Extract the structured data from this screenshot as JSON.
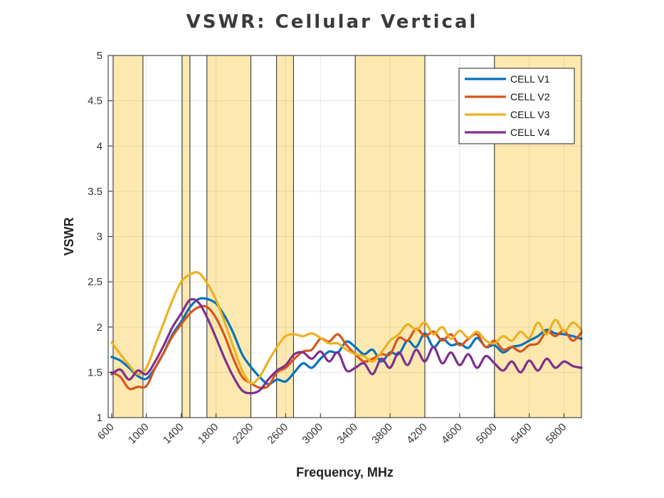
{
  "chart_data": {
    "type": "line",
    "title": "VSWR: Cellular Vertical",
    "xlabel": "Frequency, MHz",
    "ylabel": "VSWR",
    "xlim": [
      560,
      6000
    ],
    "ylim": [
      1,
      5
    ],
    "xticks": [
      600,
      1000,
      1400,
      1800,
      2200,
      2600,
      3000,
      3400,
      3800,
      4200,
      4600,
      5000,
      5400,
      5800
    ],
    "yticks": [
      1,
      1.5,
      2,
      2.5,
      3,
      3.5,
      4,
      4.5,
      5
    ],
    "ytick_labels": [
      "1",
      "1.5",
      "2",
      "2.5",
      "3",
      "3.5",
      "4",
      "4.5",
      "5"
    ],
    "grid": true,
    "legend_position": "top-right",
    "shaded_bands": [
      [
        617,
        960
      ],
      [
        1410,
        1500
      ],
      [
        1695,
        2200
      ],
      [
        2496,
        2690
      ],
      [
        3400,
        4200
      ],
      [
        5000,
        6000
      ]
    ],
    "band_color": "#fde9b0",
    "series": [
      {
        "name": "CELL V1",
        "color": "#0072bd",
        "x": [
          600,
          700,
          800,
          900,
          1000,
          1100,
          1200,
          1300,
          1400,
          1500,
          1600,
          1700,
          1800,
          1900,
          2000,
          2100,
          2200,
          2300,
          2400,
          2500,
          2600,
          2700,
          2800,
          2900,
          3000,
          3100,
          3200,
          3300,
          3400,
          3500,
          3600,
          3700,
          3800,
          3900,
          4000,
          4100,
          4200,
          4300,
          4400,
          4500,
          4600,
          4700,
          4800,
          4900,
          5000,
          5100,
          5200,
          5300,
          5400,
          5500,
          5600,
          5700,
          5800,
          5900,
          6000
        ],
        "y": [
          1.67,
          1.63,
          1.55,
          1.46,
          1.43,
          1.55,
          1.72,
          1.92,
          2.06,
          2.22,
          2.31,
          2.31,
          2.26,
          2.12,
          1.93,
          1.7,
          1.56,
          1.45,
          1.37,
          1.42,
          1.4,
          1.5,
          1.6,
          1.55,
          1.65,
          1.73,
          1.72,
          1.84,
          1.78,
          1.7,
          1.75,
          1.62,
          1.72,
          1.7,
          1.85,
          1.78,
          1.93,
          1.78,
          1.87,
          1.8,
          1.82,
          1.77,
          1.88,
          1.78,
          1.8,
          1.72,
          1.78,
          1.8,
          1.85,
          1.9,
          1.97,
          1.93,
          1.92,
          1.9,
          1.87
        ]
      },
      {
        "name": "CELL V2",
        "color": "#d95319",
        "x": [
          600,
          700,
          800,
          900,
          1000,
          1100,
          1200,
          1300,
          1400,
          1500,
          1600,
          1700,
          1800,
          1900,
          2000,
          2100,
          2200,
          2300,
          2400,
          2500,
          2600,
          2700,
          2800,
          2900,
          3000,
          3100,
          3200,
          3300,
          3400,
          3500,
          3600,
          3700,
          3800,
          3900,
          4000,
          4100,
          4200,
          4300,
          4400,
          4500,
          4600,
          4700,
          4800,
          4900,
          5000,
          5100,
          5200,
          5300,
          5400,
          5500,
          5600,
          5700,
          5800,
          5900,
          6000
        ],
        "y": [
          1.5,
          1.45,
          1.32,
          1.34,
          1.35,
          1.55,
          1.72,
          1.9,
          2.03,
          2.15,
          2.22,
          2.22,
          2.1,
          1.9,
          1.65,
          1.45,
          1.38,
          1.33,
          1.35,
          1.5,
          1.55,
          1.65,
          1.73,
          1.75,
          1.87,
          1.84,
          1.92,
          1.8,
          1.7,
          1.62,
          1.65,
          1.7,
          1.7,
          1.88,
          1.85,
          1.98,
          1.9,
          1.95,
          1.85,
          1.92,
          1.8,
          1.87,
          1.92,
          1.78,
          1.85,
          1.75,
          1.78,
          1.73,
          1.8,
          1.82,
          1.95,
          1.9,
          1.96,
          1.85,
          1.94
        ]
      },
      {
        "name": "CELL V3",
        "color": "#edb120",
        "x": [
          600,
          700,
          800,
          900,
          1000,
          1100,
          1200,
          1300,
          1400,
          1500,
          1600,
          1700,
          1800,
          1900,
          2000,
          2100,
          2200,
          2300,
          2400,
          2500,
          2600,
          2700,
          2800,
          2900,
          3000,
          3100,
          3200,
          3300,
          3400,
          3500,
          3600,
          3700,
          3800,
          3900,
          4000,
          4100,
          4200,
          4300,
          4400,
          4500,
          4600,
          4700,
          4800,
          4900,
          5000,
          5100,
          5200,
          5300,
          5400,
          5500,
          5600,
          5700,
          5800,
          5900,
          6000
        ],
        "y": [
          1.83,
          1.7,
          1.58,
          1.48,
          1.55,
          1.8,
          2.05,
          2.3,
          2.5,
          2.58,
          2.6,
          2.48,
          2.3,
          2.05,
          1.78,
          1.52,
          1.38,
          1.45,
          1.62,
          1.78,
          1.9,
          1.92,
          1.9,
          1.93,
          1.88,
          1.82,
          1.82,
          1.75,
          1.7,
          1.68,
          1.62,
          1.72,
          1.85,
          1.92,
          2.03,
          1.97,
          2.05,
          1.92,
          2.0,
          1.87,
          1.96,
          1.88,
          1.95,
          1.85,
          1.82,
          1.9,
          1.85,
          1.95,
          1.88,
          2.05,
          1.92,
          2.08,
          1.95,
          2.05,
          1.97
        ]
      },
      {
        "name": "CELL V4",
        "color": "#7e2f8e",
        "x": [
          600,
          700,
          800,
          900,
          1000,
          1100,
          1200,
          1300,
          1400,
          1500,
          1600,
          1700,
          1800,
          1900,
          2000,
          2100,
          2200,
          2300,
          2400,
          2500,
          2600,
          2700,
          2800,
          2900,
          3000,
          3100,
          3200,
          3300,
          3400,
          3500,
          3600,
          3700,
          3800,
          3900,
          4000,
          4100,
          4200,
          4300,
          4400,
          4500,
          4600,
          4700,
          4800,
          4900,
          5000,
          5100,
          5200,
          5300,
          5400,
          5500,
          5600,
          5700,
          5800,
          5900,
          6000
        ],
        "y": [
          1.48,
          1.53,
          1.42,
          1.52,
          1.48,
          1.62,
          1.8,
          2.0,
          2.15,
          2.3,
          2.27,
          2.1,
          1.88,
          1.65,
          1.45,
          1.3,
          1.27,
          1.3,
          1.42,
          1.52,
          1.58,
          1.7,
          1.72,
          1.65,
          1.73,
          1.62,
          1.72,
          1.52,
          1.55,
          1.6,
          1.48,
          1.65,
          1.55,
          1.72,
          1.58,
          1.75,
          1.62,
          1.78,
          1.6,
          1.72,
          1.58,
          1.7,
          1.55,
          1.68,
          1.6,
          1.52,
          1.62,
          1.5,
          1.63,
          1.52,
          1.65,
          1.55,
          1.62,
          1.57,
          1.55
        ]
      }
    ]
  }
}
